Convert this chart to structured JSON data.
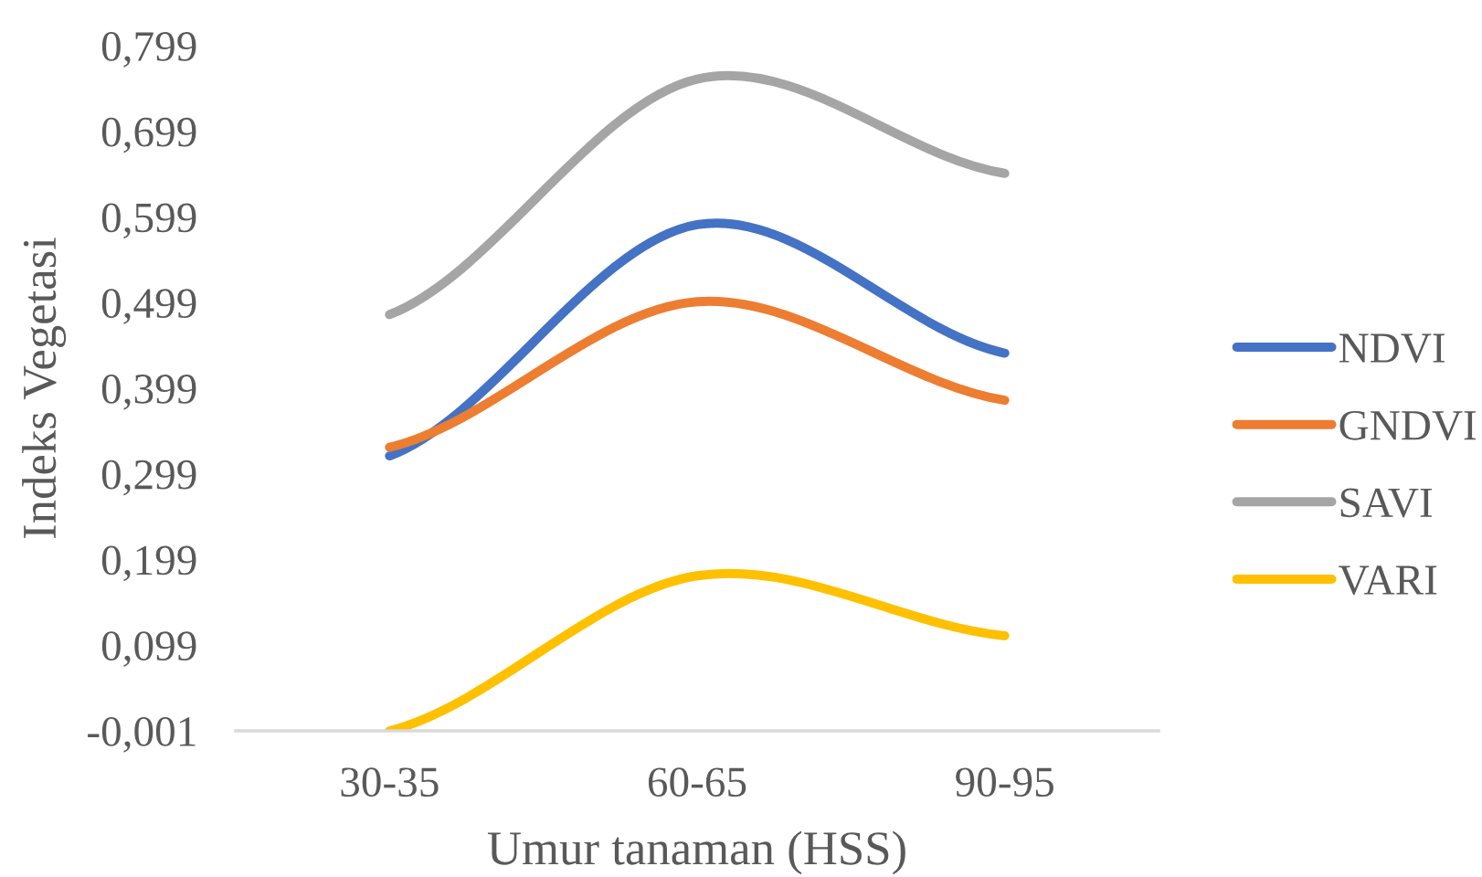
{
  "chart_data": {
    "type": "line",
    "xlabel": "Umur tanaman (HSS)",
    "ylabel": "Indeks Vegetasi",
    "categories": [
      "30-35",
      "60-65",
      "90-95"
    ],
    "series": [
      {
        "name": "NDVI",
        "color": "#4472c4",
        "values": [
          0.32,
          0.59,
          0.44
        ]
      },
      {
        "name": "GNDVI",
        "color": "#ed7d31",
        "values": [
          0.33,
          0.5,
          0.385
        ]
      },
      {
        "name": "SAVI",
        "color": "#a5a5a5",
        "values": [
          0.485,
          0.76,
          0.65
        ]
      },
      {
        "name": "VARI",
        "color": "#ffc000",
        "values": [
          -0.001,
          0.18,
          0.11
        ]
      }
    ],
    "ylim": [
      -0.001,
      0.799
    ],
    "yticks": [
      {
        "value": -0.001,
        "label": "-0,001"
      },
      {
        "value": 0.099,
        "label": "0,099"
      },
      {
        "value": 0.199,
        "label": "0,199"
      },
      {
        "value": 0.299,
        "label": "0,299"
      },
      {
        "value": 0.399,
        "label": "0,399"
      },
      {
        "value": 0.499,
        "label": "0,499"
      },
      {
        "value": 0.599,
        "label": "0,599"
      },
      {
        "value": 0.699,
        "label": "0,699"
      },
      {
        "value": 0.799,
        "label": "0,799"
      }
    ],
    "legend": "right",
    "line_style": "solid"
  }
}
